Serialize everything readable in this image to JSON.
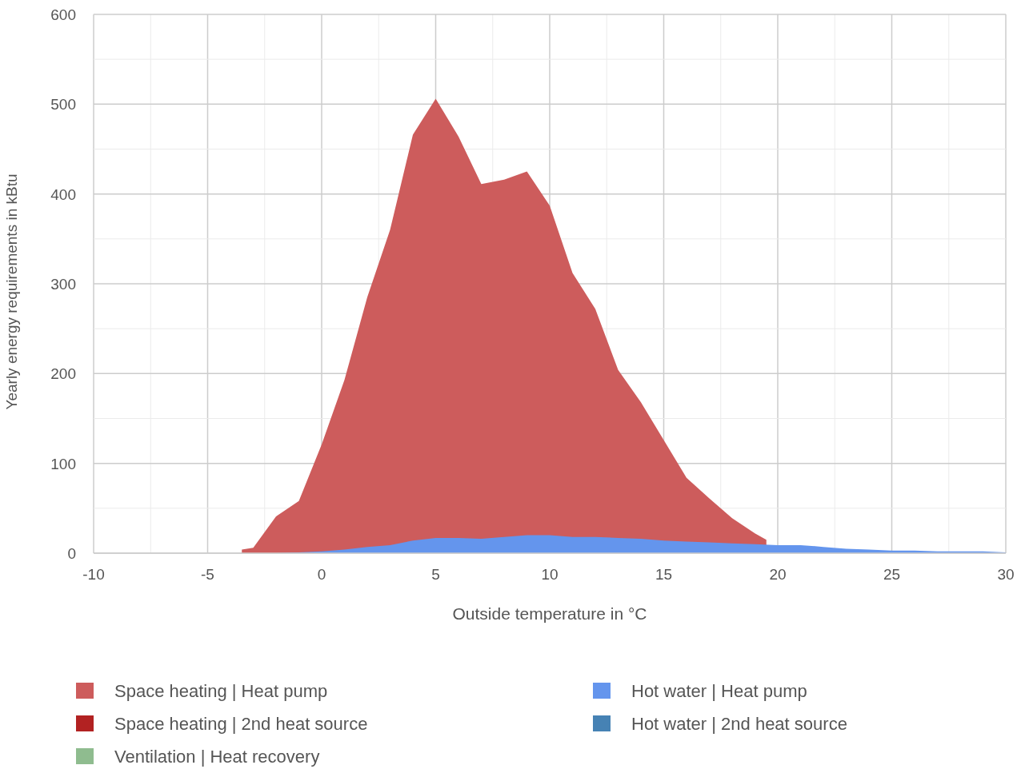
{
  "chart_data": {
    "type": "area",
    "xlabel": "Outside temperature in °C",
    "ylabel": "Yearly energy requirements in kBtu",
    "xlim": [
      -10,
      30
    ],
    "ylim": [
      0,
      600
    ],
    "xticks": [
      -10,
      {
        "value": -7.5,
        "label": null
      },
      -5,
      {
        "value": -2.5,
        "label": null
      },
      0,
      {
        "value": 2.5,
        "label": null
      },
      5,
      {
        "value": 7.5,
        "label": null
      },
      10,
      {
        "value": 12.5,
        "label": null
      },
      15,
      {
        "value": 17.5,
        "label": null
      },
      20,
      {
        "value": 22.5,
        "label": null
      },
      25,
      {
        "value": 27.5,
        "label": null
      },
      30
    ],
    "yticks": [
      0,
      {
        "value": 50,
        "label": null
      },
      100,
      {
        "value": 150,
        "label": null
      },
      200,
      {
        "value": 250,
        "label": null
      },
      300,
      {
        "value": 350,
        "label": null
      },
      400,
      {
        "value": 450,
        "label": null
      },
      500,
      {
        "value": 550,
        "label": null
      },
      600
    ],
    "grid": true,
    "legend": "bottom",
    "series": [
      {
        "name": "Space heating | Heat pump",
        "color": "#cd5c5c",
        "x": [
          -3.5,
          -3,
          -2,
          -1,
          0,
          1,
          2,
          3,
          4,
          5,
          6,
          7,
          8,
          9,
          10,
          11,
          12,
          13,
          14,
          15,
          16,
          17,
          18,
          19,
          19.5
        ],
        "values": [
          4,
          6,
          41,
          58,
          121,
          193,
          285,
          360,
          466,
          506,
          464,
          411,
          416,
          425,
          387,
          312,
          272,
          204,
          168,
          126,
          84,
          61,
          39,
          22,
          15
        ]
      },
      {
        "name": "Space heating | 2nd heat source",
        "color": "#b22222"
      },
      {
        "name": "Ventilation | Heat recovery",
        "color": "#8fbc8f"
      },
      {
        "name": "Hot water | Heat pump",
        "color": "#6495ed",
        "x": [
          -3,
          -2,
          -1,
          0,
          1,
          2,
          3,
          4,
          5,
          6,
          7,
          8,
          9,
          10,
          11,
          12,
          13,
          14,
          15,
          16,
          17,
          18,
          19,
          20,
          21,
          22,
          23,
          24,
          25,
          26,
          27,
          28,
          29,
          30
        ],
        "values": [
          0,
          0,
          1,
          2,
          4,
          7,
          9,
          14,
          17,
          17,
          16,
          18,
          20,
          20,
          18,
          18,
          17,
          16,
          14,
          13,
          12,
          11,
          10,
          9,
          9,
          7,
          5,
          4,
          3,
          3,
          2,
          2,
          2,
          1
        ]
      },
      {
        "name": "Hot water | 2nd heat source",
        "color": "#4682b4"
      }
    ]
  }
}
